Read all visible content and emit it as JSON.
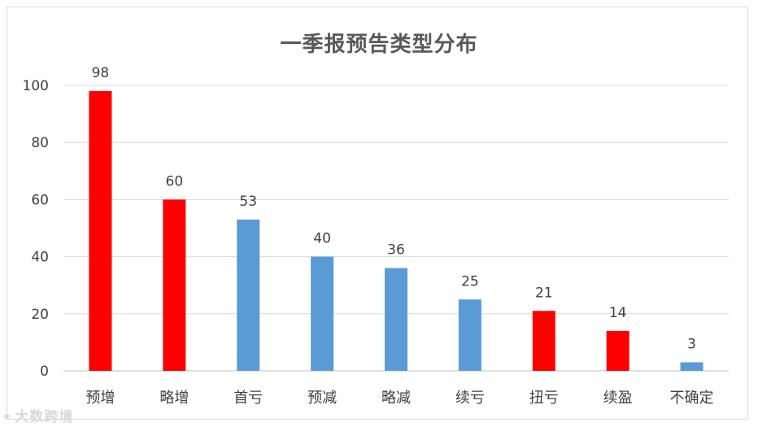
{
  "chart_data": {
    "type": "bar",
    "title": "一季报预告类型分布",
    "categories": [
      "预增",
      "略增",
      "首亏",
      "预减",
      "略减",
      "续亏",
      "扭亏",
      "续盈",
      "不确定"
    ],
    "values": [
      98,
      60,
      53,
      40,
      36,
      25,
      21,
      14,
      3
    ],
    "bar_colors": [
      "#FF0000",
      "#FF0000",
      "#5B9BD5",
      "#5B9BD5",
      "#5B9BD5",
      "#5B9BD5",
      "#FF0000",
      "#FF0000",
      "#5B9BD5"
    ],
    "ylim": [
      0,
      100
    ],
    "yticks": [
      0,
      20,
      40,
      60,
      80,
      100
    ],
    "grid": true,
    "data_labels": true
  },
  "colors": {
    "positive": "#FF0000",
    "neutral_negative": "#5B9BD5",
    "gridline": "#D9D9D9",
    "text": "#404040"
  },
  "watermark": {
    "icon": "weibo-icon",
    "text": "大数跨境"
  }
}
